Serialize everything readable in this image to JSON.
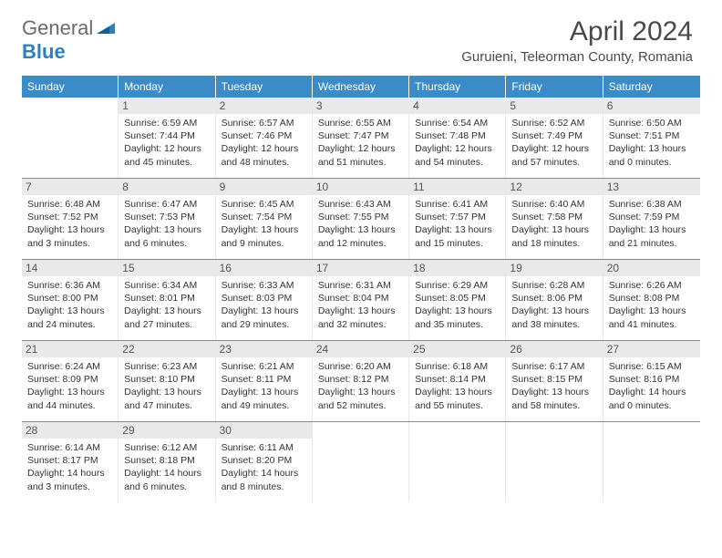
{
  "logo": {
    "part1": "General",
    "part2": "Blue"
  },
  "title": "April 2024",
  "location": "Guruieni, Teleorman County, Romania",
  "weekdays": [
    "Sunday",
    "Monday",
    "Tuesday",
    "Wednesday",
    "Thursday",
    "Friday",
    "Saturday"
  ],
  "colors": {
    "header_bg": "#3b8bc9",
    "daynum_bg": "#e9e9e9",
    "logo_gray": "#6b6b6b",
    "logo_blue": "#2d7fc1"
  },
  "weeks": [
    [
      null,
      {
        "n": "1",
        "sr": "6:59 AM",
        "ss": "7:44 PM",
        "dl": "12 hours and 45 minutes."
      },
      {
        "n": "2",
        "sr": "6:57 AM",
        "ss": "7:46 PM",
        "dl": "12 hours and 48 minutes."
      },
      {
        "n": "3",
        "sr": "6:55 AM",
        "ss": "7:47 PM",
        "dl": "12 hours and 51 minutes."
      },
      {
        "n": "4",
        "sr": "6:54 AM",
        "ss": "7:48 PM",
        "dl": "12 hours and 54 minutes."
      },
      {
        "n": "5",
        "sr": "6:52 AM",
        "ss": "7:49 PM",
        "dl": "12 hours and 57 minutes."
      },
      {
        "n": "6",
        "sr": "6:50 AM",
        "ss": "7:51 PM",
        "dl": "13 hours and 0 minutes."
      }
    ],
    [
      {
        "n": "7",
        "sr": "6:48 AM",
        "ss": "7:52 PM",
        "dl": "13 hours and 3 minutes."
      },
      {
        "n": "8",
        "sr": "6:47 AM",
        "ss": "7:53 PM",
        "dl": "13 hours and 6 minutes."
      },
      {
        "n": "9",
        "sr": "6:45 AM",
        "ss": "7:54 PM",
        "dl": "13 hours and 9 minutes."
      },
      {
        "n": "10",
        "sr": "6:43 AM",
        "ss": "7:55 PM",
        "dl": "13 hours and 12 minutes."
      },
      {
        "n": "11",
        "sr": "6:41 AM",
        "ss": "7:57 PM",
        "dl": "13 hours and 15 minutes."
      },
      {
        "n": "12",
        "sr": "6:40 AM",
        "ss": "7:58 PM",
        "dl": "13 hours and 18 minutes."
      },
      {
        "n": "13",
        "sr": "6:38 AM",
        "ss": "7:59 PM",
        "dl": "13 hours and 21 minutes."
      }
    ],
    [
      {
        "n": "14",
        "sr": "6:36 AM",
        "ss": "8:00 PM",
        "dl": "13 hours and 24 minutes."
      },
      {
        "n": "15",
        "sr": "6:34 AM",
        "ss": "8:01 PM",
        "dl": "13 hours and 27 minutes."
      },
      {
        "n": "16",
        "sr": "6:33 AM",
        "ss": "8:03 PM",
        "dl": "13 hours and 29 minutes."
      },
      {
        "n": "17",
        "sr": "6:31 AM",
        "ss": "8:04 PM",
        "dl": "13 hours and 32 minutes."
      },
      {
        "n": "18",
        "sr": "6:29 AM",
        "ss": "8:05 PM",
        "dl": "13 hours and 35 minutes."
      },
      {
        "n": "19",
        "sr": "6:28 AM",
        "ss": "8:06 PM",
        "dl": "13 hours and 38 minutes."
      },
      {
        "n": "20",
        "sr": "6:26 AM",
        "ss": "8:08 PM",
        "dl": "13 hours and 41 minutes."
      }
    ],
    [
      {
        "n": "21",
        "sr": "6:24 AM",
        "ss": "8:09 PM",
        "dl": "13 hours and 44 minutes."
      },
      {
        "n": "22",
        "sr": "6:23 AM",
        "ss": "8:10 PM",
        "dl": "13 hours and 47 minutes."
      },
      {
        "n": "23",
        "sr": "6:21 AM",
        "ss": "8:11 PM",
        "dl": "13 hours and 49 minutes."
      },
      {
        "n": "24",
        "sr": "6:20 AM",
        "ss": "8:12 PM",
        "dl": "13 hours and 52 minutes."
      },
      {
        "n": "25",
        "sr": "6:18 AM",
        "ss": "8:14 PM",
        "dl": "13 hours and 55 minutes."
      },
      {
        "n": "26",
        "sr": "6:17 AM",
        "ss": "8:15 PM",
        "dl": "13 hours and 58 minutes."
      },
      {
        "n": "27",
        "sr": "6:15 AM",
        "ss": "8:16 PM",
        "dl": "14 hours and 0 minutes."
      }
    ],
    [
      {
        "n": "28",
        "sr": "6:14 AM",
        "ss": "8:17 PM",
        "dl": "14 hours and 3 minutes."
      },
      {
        "n": "29",
        "sr": "6:12 AM",
        "ss": "8:18 PM",
        "dl": "14 hours and 6 minutes."
      },
      {
        "n": "30",
        "sr": "6:11 AM",
        "ss": "8:20 PM",
        "dl": "14 hours and 8 minutes."
      },
      null,
      null,
      null,
      null
    ]
  ],
  "labels": {
    "sunrise": "Sunrise:",
    "sunset": "Sunset:",
    "daylight": "Daylight:"
  }
}
